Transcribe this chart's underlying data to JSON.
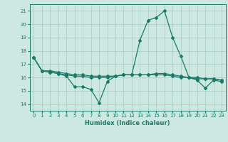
{
  "title": "",
  "xlabel": "Humidex (Indice chaleur)",
  "ylabel": "",
  "bg_color": "#cce8e0",
  "line_color": "#1a7a6a",
  "grid_color": "#aacfc8",
  "x_values": [
    0,
    1,
    2,
    3,
    4,
    5,
    6,
    7,
    8,
    9,
    10,
    11,
    12,
    13,
    14,
    15,
    16,
    17,
    18,
    19,
    20,
    21,
    22,
    23
  ],
  "series1": [
    17.5,
    16.5,
    16.4,
    16.3,
    16.1,
    15.3,
    15.3,
    15.1,
    14.1,
    15.7,
    16.1,
    16.2,
    16.2,
    18.8,
    20.3,
    20.5,
    21.0,
    19.0,
    17.6,
    16.0,
    15.8,
    15.2,
    15.8,
    15.7
  ],
  "series2": [
    17.5,
    16.5,
    16.4,
    16.3,
    16.2,
    16.1,
    16.1,
    16.0,
    16.0,
    16.0,
    16.1,
    16.2,
    16.2,
    16.2,
    16.2,
    16.2,
    16.2,
    16.1,
    16.0,
    16.0,
    15.9,
    15.9,
    15.9,
    15.8
  ],
  "series3": [
    17.5,
    16.5,
    16.5,
    16.4,
    16.3,
    16.2,
    16.2,
    16.1,
    16.1,
    16.1,
    16.1,
    16.2,
    16.2,
    16.2,
    16.2,
    16.3,
    16.3,
    16.2,
    16.1,
    16.0,
    16.0,
    15.9,
    15.9,
    15.8
  ],
  "ylim": [
    13.5,
    21.5
  ],
  "xlim": [
    -0.5,
    23.5
  ],
  "yticks": [
    14,
    15,
    16,
    17,
    18,
    19,
    20,
    21
  ],
  "xticks": [
    0,
    1,
    2,
    3,
    4,
    5,
    6,
    7,
    8,
    9,
    10,
    11,
    12,
    13,
    14,
    15,
    16,
    17,
    18,
    19,
    20,
    21,
    22,
    23
  ],
  "tick_labelsize": 5.0,
  "xlabel_fontsize": 6.0,
  "lw": 0.9,
  "ms": 2.0
}
